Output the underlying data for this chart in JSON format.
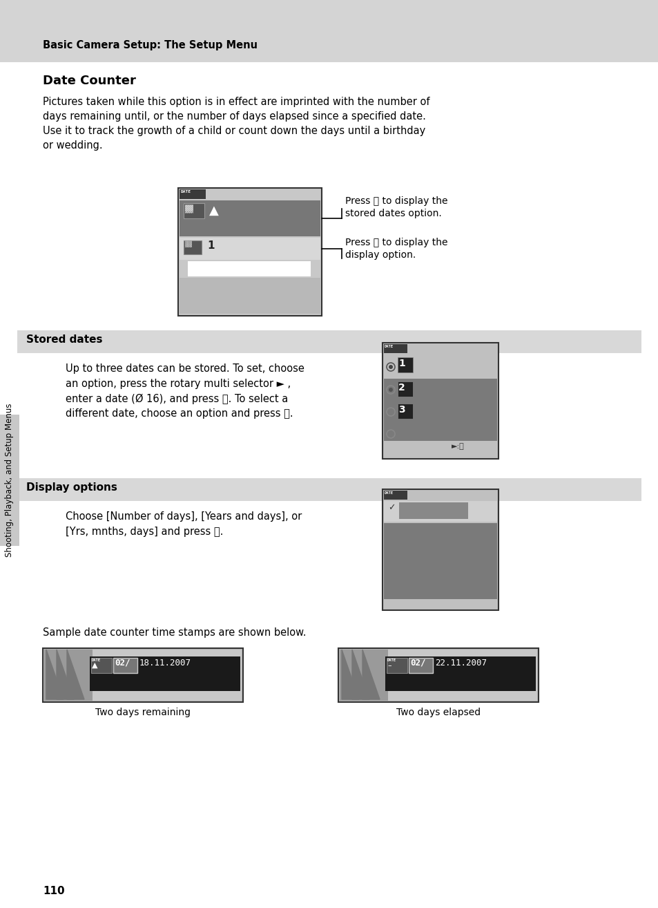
{
  "page_bg": "#ffffff",
  "header_bg": "#d4d4d4",
  "header_text": "Basic Camera Setup: The Setup Menu",
  "header_fontsize": 10.5,
  "title": "Date Counter",
  "title_fontsize": 13,
  "body_text1": "Pictures taken while this option is in effect are imprinted with the number of\ndays remaining until, or the number of days elapsed since a specified date.\nUse it to track the growth of a child or count down the days until a birthday\nor wedding.",
  "body_fontsize": 10.5,
  "section1_bg": "#d8d8d8",
  "section1_title": "Stored dates",
  "section1_text": "Up to three dates can be stored. To set, choose\nan option, press the rotary multi selector ► ,\nenter a date (Ø 16), and press ⒪. To select a\ndifferent date, choose an option and press ⒪.",
  "section2_bg": "#d8d8d8",
  "section2_title": "Display options",
  "section2_text": "Choose [Number of days], [Years and days], or\n[Yrs, mnths, days] and press ⒪.",
  "callout1": "Press ⒪ to display the\nstored dates option.",
  "callout2": "Press ⒪ to display the\ndisplay option.",
  "sample_text": "Sample date counter time stamps are shown below.",
  "stamp1_label": "Two days remaining",
  "stamp2_label": "Two days elapsed",
  "sidebar_text": "Shooting, Playback, and Setup Menus",
  "page_number": "110"
}
